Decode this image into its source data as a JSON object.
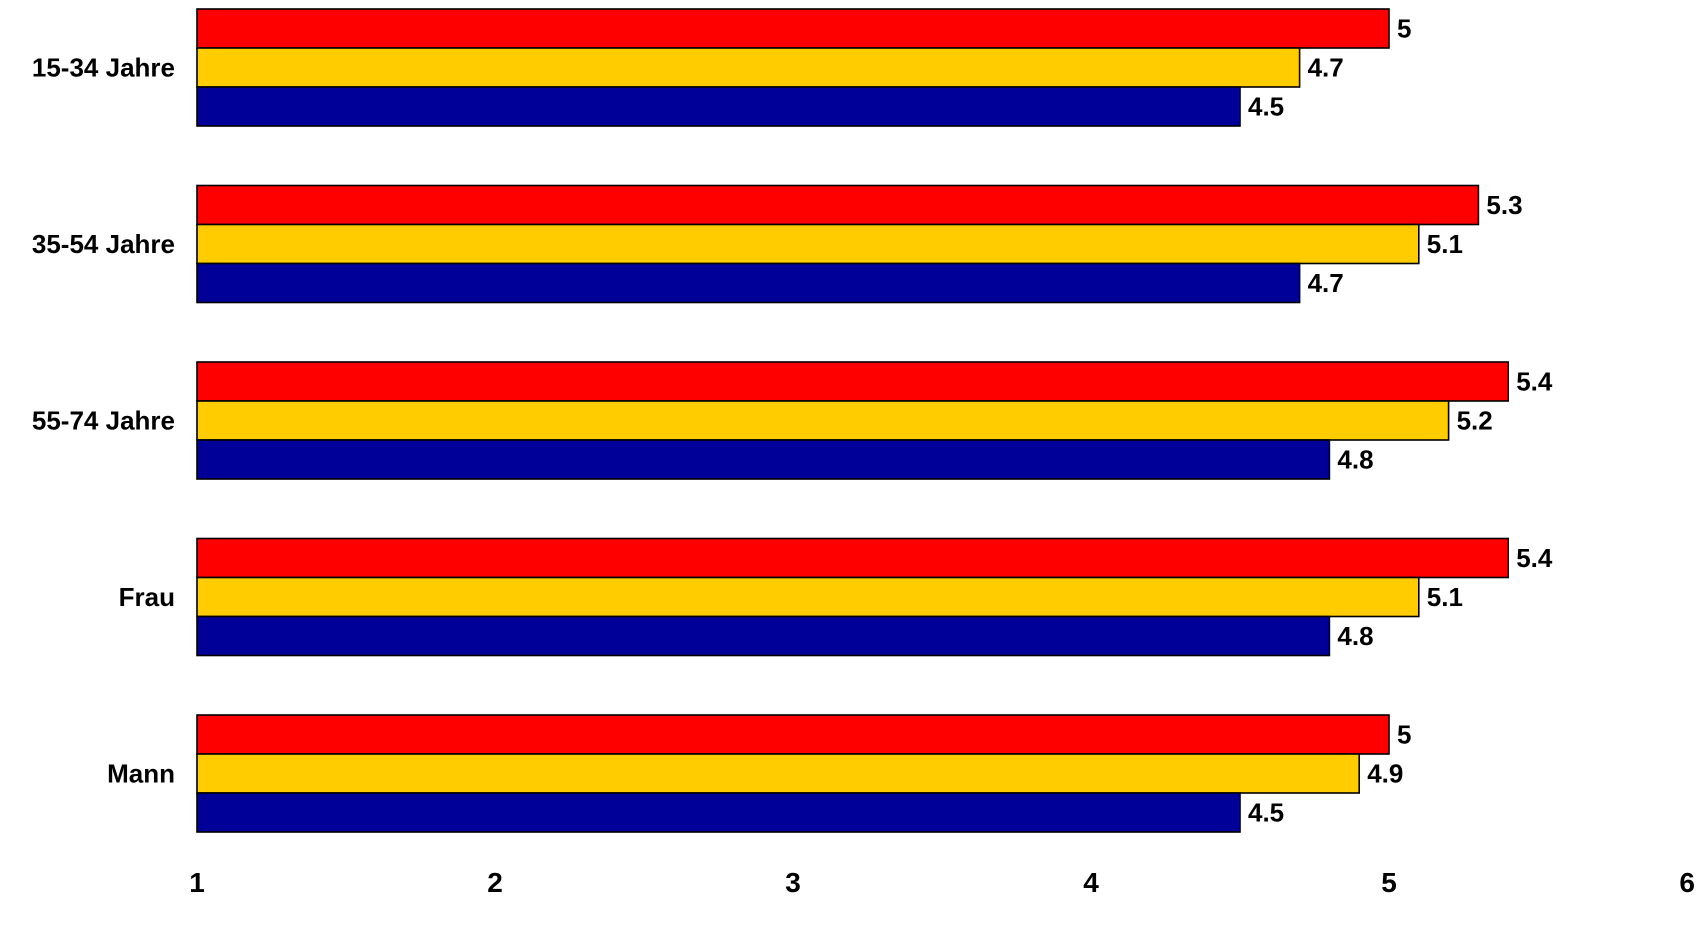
{
  "chart_data": {
    "type": "bar",
    "orientation": "horizontal",
    "categories": [
      "15-34 Jahre",
      "35-54 Jahre",
      "55-74 Jahre",
      "Frau",
      "Mann"
    ],
    "series": [
      {
        "color": "#FF0000",
        "values": [
          5,
          5.3,
          5.4,
          5.4,
          5
        ]
      },
      {
        "color": "#FFCC00",
        "values": [
          4.7,
          5.1,
          5.2,
          5.1,
          4.9
        ]
      },
      {
        "color": "#000099",
        "values": [
          4.5,
          4.7,
          4.8,
          4.8,
          4.5
        ]
      }
    ],
    "value_labels": [
      [
        "5",
        "5.3",
        "5.4",
        "5.4",
        "5"
      ],
      [
        "4.7",
        "5.1",
        "5.2",
        "5.1",
        "4.9"
      ],
      [
        "4.5",
        "4.7",
        "4.8",
        "4.8",
        "4.5"
      ]
    ],
    "xlim": [
      1,
      6
    ],
    "xticks": [
      1,
      2,
      3,
      4,
      5,
      6
    ],
    "xtick_labels": [
      "1",
      "2",
      "3",
      "4",
      "5",
      "6"
    ],
    "title": "",
    "xlabel": "",
    "ylabel": "",
    "grid": false,
    "legend": "none"
  }
}
